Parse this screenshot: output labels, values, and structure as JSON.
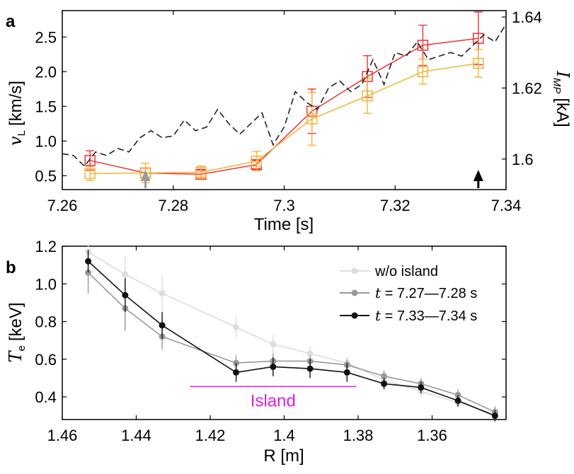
{
  "figure": {
    "panel_a_label": "a",
    "panel_b_label": "b"
  },
  "chart_data": [
    {
      "type": "line",
      "panel": "a",
      "xlabel": "Time [s]",
      "ylabel_left": "v_L [km/s]",
      "ylabel_left_main": "v",
      "ylabel_left_sub": "L",
      "ylabel_left_unit": "[km/s]",
      "ylabel_right": "I_MP [kA]",
      "ylabel_right_main": "I",
      "ylabel_right_sub": "MP",
      "ylabel_right_unit": "[kA]",
      "xlim": [
        7.26,
        7.34
      ],
      "ylim_left": [
        0.3,
        2.88
      ],
      "ylim_right": [
        1.5914,
        1.6418
      ],
      "x_ticks": [
        7.26,
        7.28,
        7.3,
        7.32,
        7.34
      ],
      "x_tick_labels": [
        "7.26",
        "7.28",
        "7.3",
        "7.32",
        "7.34"
      ],
      "y_ticks_left": [
        0.5,
        1.0,
        1.5,
        2.0,
        2.5
      ],
      "y_tick_labels_left": [
        "0.5",
        "1.0",
        "1.5",
        "2.0",
        "2.5"
      ],
      "y_ticks_right": [
        1.6,
        1.62,
        1.64
      ],
      "y_tick_labels_right": [
        "1.6",
        "1.62",
        "1.64"
      ],
      "markers": [
        {
          "x": 7.275,
          "color": "#9a9a9a",
          "name": "gray-arrow"
        },
        {
          "x": 7.335,
          "color": "#000000",
          "name": "black-arrow"
        }
      ],
      "series": [
        {
          "name": "red-series",
          "color": "#ee3333",
          "marker": "square",
          "axis": "left",
          "x": [
            7.265,
            7.275,
            7.285,
            7.295,
            7.305,
            7.315,
            7.325,
            7.335
          ],
          "y": [
            0.72,
            0.54,
            0.52,
            0.66,
            1.43,
            1.93,
            2.38,
            2.48
          ],
          "err": [
            0.14,
            0.07,
            0.06,
            0.06,
            0.32,
            0.3,
            0.29,
            0.38
          ]
        },
        {
          "name": "orange-series",
          "color": "#f5b335",
          "marker": "square",
          "axis": "left",
          "x": [
            7.265,
            7.275,
            7.285,
            7.295,
            7.305,
            7.315,
            7.325,
            7.335
          ],
          "y": [
            0.53,
            0.54,
            0.55,
            0.71,
            1.32,
            1.65,
            2.0,
            2.12
          ],
          "err": [
            0.1,
            0.14,
            0.09,
            0.14,
            0.38,
            0.25,
            0.18,
            0.2
          ]
        },
        {
          "name": "current-dashed",
          "color": "#222222",
          "style": "dashed",
          "axis": "right",
          "x": [
            7.26,
            7.262,
            7.264,
            7.266,
            7.268,
            7.27,
            7.272,
            7.274,
            7.276,
            7.278,
            7.28,
            7.282,
            7.284,
            7.286,
            7.288,
            7.29,
            7.292,
            7.294,
            7.296,
            7.298,
            7.3,
            7.302,
            7.304,
            7.306,
            7.308,
            7.31,
            7.312,
            7.314,
            7.316,
            7.318,
            7.32,
            7.322,
            7.324,
            7.326,
            7.328,
            7.33,
            7.332,
            7.334,
            7.336,
            7.338,
            7.34
          ],
          "y": [
            1.6015,
            1.601,
            1.598,
            1.602,
            1.601,
            1.603,
            1.602,
            1.606,
            1.608,
            1.606,
            1.6065,
            1.611,
            1.608,
            1.609,
            1.614,
            1.61,
            1.607,
            1.61,
            1.613,
            1.604,
            1.609,
            1.619,
            1.616,
            1.614,
            1.62,
            1.622,
            1.619,
            1.621,
            1.628,
            1.621,
            1.63,
            1.629,
            1.633,
            1.628,
            1.629,
            1.63,
            1.629,
            1.632,
            1.635,
            1.633,
            1.638
          ]
        }
      ]
    },
    {
      "type": "line",
      "panel": "b",
      "xlabel": "R [m]",
      "ylabel": "T_e [keV]",
      "ylabel_main": "T",
      "ylabel_sub": "e",
      "ylabel_unit": "[keV]",
      "xlim": [
        1.46,
        1.34
      ],
      "ylim": [
        0.28,
        1.2
      ],
      "x_ticks": [
        1.46,
        1.44,
        1.42,
        1.4,
        1.38,
        1.36
      ],
      "x_tick_labels": [
        "1.46",
        "1.44",
        "1.42",
        "1.4",
        "1.38",
        "1.36"
      ],
      "y_ticks": [
        0.4,
        0.6,
        0.8,
        1.0,
        1.2
      ],
      "y_tick_labels": [
        "0.4",
        "0.6",
        "0.8",
        "1.0",
        "1.2"
      ],
      "annotation": {
        "text": "Island",
        "color": "#e11fd8",
        "x_from": 1.4255,
        "x_to": 1.3805,
        "y": 0.455
      },
      "legend": {
        "placement": "top-right"
      },
      "series": [
        {
          "name": "w/o island",
          "legend_main": "w/o island",
          "color": "#dddddd",
          "x": [
            1.453,
            1.443,
            1.433,
            1.413,
            1.403,
            1.393,
            1.383,
            1.373,
            1.363,
            1.353,
            1.343
          ],
          "y": [
            1.17,
            1.05,
            0.95,
            0.77,
            0.68,
            0.63,
            0.58,
            0.49,
            0.43,
            0.37,
            0.31
          ],
          "err": [
            0.05,
            0.1,
            0.1,
            0.06,
            0.05,
            0.04,
            0.03,
            0.03,
            0.03,
            0.03,
            0.03
          ]
        },
        {
          "name": "t = 7.27—7.28 s",
          "legend_main": "t",
          "legend_rest": " = 7.27—7.28 s",
          "color": "#999999",
          "x": [
            1.453,
            1.443,
            1.433,
            1.413,
            1.403,
            1.393,
            1.383,
            1.373,
            1.363,
            1.353,
            1.343
          ],
          "y": [
            1.06,
            0.87,
            0.72,
            0.58,
            0.59,
            0.59,
            0.57,
            0.51,
            0.47,
            0.41,
            0.32
          ],
          "err": [
            0.11,
            0.12,
            0.07,
            0.04,
            0.04,
            0.03,
            0.03,
            0.03,
            0.03,
            0.03,
            0.03
          ]
        },
        {
          "name": "t = 7.33—7.34 s",
          "legend_main": "t",
          "legend_rest": " = 7.33—7.34 s",
          "color": "#111111",
          "x": [
            1.453,
            1.443,
            1.433,
            1.413,
            1.403,
            1.393,
            1.383,
            1.373,
            1.363,
            1.353,
            1.343
          ],
          "y": [
            1.12,
            0.94,
            0.78,
            0.53,
            0.56,
            0.55,
            0.53,
            0.47,
            0.45,
            0.38,
            0.3
          ],
          "err": [
            0.06,
            0.09,
            0.07,
            0.05,
            0.05,
            0.05,
            0.05,
            0.03,
            0.03,
            0.03,
            0.03
          ]
        }
      ]
    }
  ]
}
